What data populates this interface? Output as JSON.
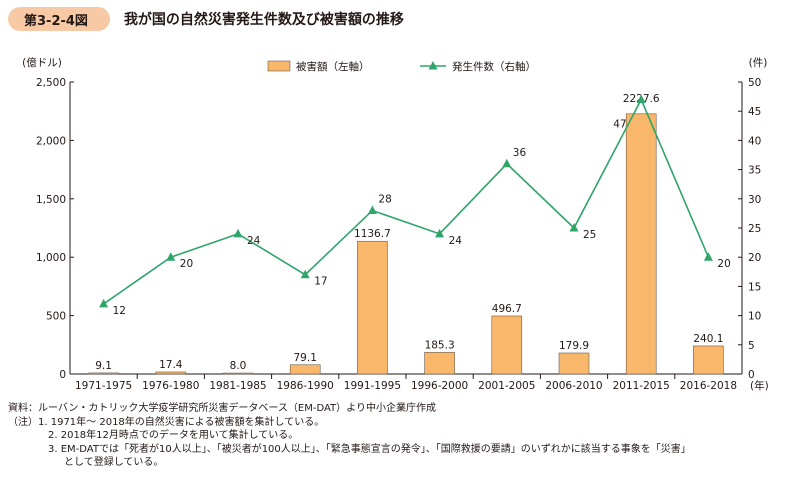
{
  "header": {
    "figure_label": "第3-2-4図",
    "title": "我が国の自然災害発生件数及び被害額の推移"
  },
  "chart_data": {
    "type": "bar+line",
    "categories": [
      "1971-1975",
      "1976-1980",
      "1981-1985",
      "1986-1990",
      "1991-1995",
      "1996-2000",
      "2001-2005",
      "2006-2010",
      "2011-2015",
      "2016-2018"
    ],
    "x_suffix": "(年)",
    "series": [
      {
        "name": "被害額（左軸）",
        "type": "bar",
        "axis": "left",
        "color": "#f8b76b",
        "values": [
          9.1,
          17.4,
          8.0,
          79.1,
          1136.7,
          185.3,
          496.7,
          179.9,
          2227.6,
          240.1
        ],
        "labels": [
          "9.1",
          "17.4",
          "8.0",
          "79.1",
          "1136.7",
          "185.3",
          "496.7",
          "179.9",
          "2227.6",
          "240.1"
        ]
      },
      {
        "name": "発生件数（右軸）",
        "type": "line",
        "axis": "right",
        "color": "#2fa56a",
        "values": [
          12,
          20,
          24,
          17,
          28,
          24,
          36,
          25,
          47,
          20
        ],
        "labels": [
          "12",
          "20",
          "24",
          "17",
          "28",
          "24",
          "36",
          "25",
          "47",
          "20"
        ]
      }
    ],
    "left_axis": {
      "unit": "(億ドル)",
      "min": 0,
      "max": 2500,
      "ticks": [
        0,
        500,
        1000,
        1500,
        2000,
        2500
      ],
      "tick_labels": [
        "0",
        "500",
        "1,000",
        "1,500",
        "2,000",
        "2,500"
      ]
    },
    "right_axis": {
      "unit": "(件)",
      "min": 0,
      "max": 50,
      "ticks": [
        0,
        5,
        10,
        15,
        20,
        25,
        30,
        35,
        40,
        45,
        50
      ],
      "tick_labels": [
        "0",
        "5",
        "10",
        "15",
        "20",
        "25",
        "30",
        "35",
        "40",
        "45",
        "50"
      ]
    },
    "legend_position": "top-center",
    "grid": false
  },
  "notes": {
    "source": "資料：ルーバン・カトリック大学疫学研究所災害データベース（EM-DAT）より中小企業庁作成",
    "note1": "（注）1. 1971年～ 2018年の自然災害による被害額を集計している。",
    "note2": "2. 2018年12月時点でのデータを用いて集計している。",
    "note3": "3. EM-DATでは「死者が10人以上」、「被災者が100人以上」、「緊急事態宣言の発令」、「国際救援の要請」のいずれかに該当する事象を「災害」",
    "note4": "として登録している。"
  }
}
